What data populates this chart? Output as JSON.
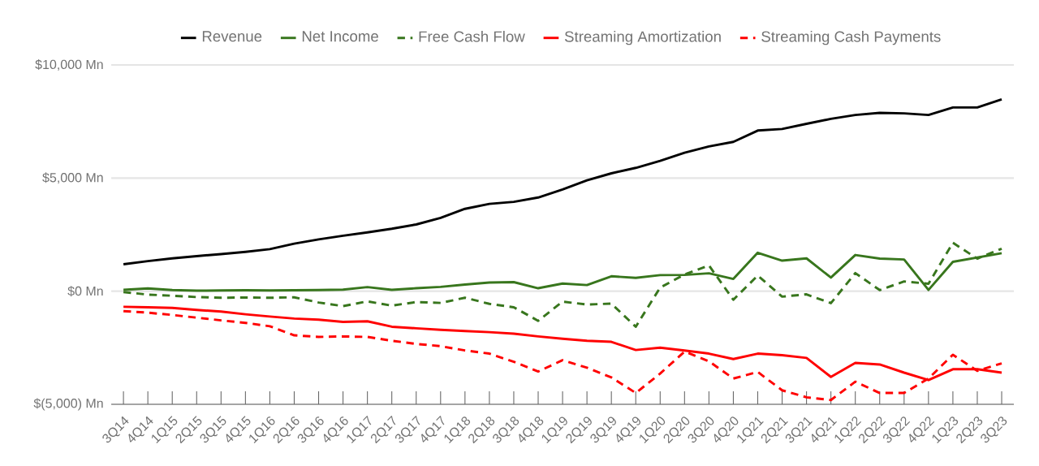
{
  "chart_data": {
    "type": "line",
    "categories": [
      "3Q14",
      "4Q14",
      "1Q15",
      "2Q15",
      "3Q15",
      "4Q15",
      "1Q16",
      "2Q16",
      "3Q16",
      "4Q16",
      "1Q17",
      "2Q17",
      "3Q17",
      "4Q17",
      "1Q18",
      "2Q18",
      "3Q18",
      "4Q18",
      "1Q19",
      "2Q19",
      "3Q19",
      "4Q19",
      "1Q20",
      "2Q20",
      "3Q20",
      "4Q20",
      "1Q21",
      "2Q21",
      "3Q21",
      "4Q21",
      "1Q22",
      "2Q22",
      "3Q22",
      "4Q22",
      "1Q23",
      "2Q23",
      "3Q23"
    ],
    "series": [
      {
        "name": "Revenue",
        "color": "#000000",
        "line_style": "solid",
        "values": [
          1190,
          1330,
          1450,
          1550,
          1640,
          1740,
          1860,
          2100,
          2290,
          2450,
          2600,
          2760,
          2950,
          3240,
          3640,
          3860,
          3950,
          4140,
          4500,
          4900,
          5210,
          5450,
          5760,
          6120,
          6400,
          6600,
          7100,
          7170,
          7400,
          7620,
          7790,
          7880,
          7860,
          7790,
          8120,
          8120,
          8480
        ]
      },
      {
        "name": "Net Income",
        "color": "#38761d",
        "line_style": "solid",
        "values": [
          60,
          120,
          50,
          25,
          30,
          40,
          30,
          40,
          50,
          70,
          180,
          60,
          130,
          190,
          290,
          380,
          400,
          130,
          340,
          270,
          660,
          590,
          710,
          720,
          790,
          540,
          1700,
          1350,
          1450,
          600,
          1600,
          1440,
          1400,
          55,
          1300,
          1490,
          1680
        ]
      },
      {
        "name": "Free Cash Flow",
        "color": "#38761d",
        "line_style": "dashed",
        "values": [
          -40,
          -150,
          -200,
          -260,
          -290,
          -280,
          -290,
          -270,
          -500,
          -660,
          -450,
          -640,
          -480,
          -520,
          -290,
          -560,
          -710,
          -1310,
          -460,
          -590,
          -550,
          -1570,
          160,
          740,
          1140,
          -380,
          690,
          -240,
          -140,
          -530,
          800,
          50,
          430,
          330,
          2140,
          1440,
          1880
        ]
      },
      {
        "name": "Streaming Amortization",
        "color": "#ff0000",
        "line_style": "solid",
        "values": [
          -690,
          -710,
          -740,
          -830,
          -900,
          -1020,
          -1120,
          -1210,
          -1260,
          -1360,
          -1330,
          -1570,
          -1640,
          -1710,
          -1760,
          -1810,
          -1880,
          -2000,
          -2100,
          -2190,
          -2240,
          -2600,
          -2500,
          -2620,
          -2760,
          -3000,
          -2760,
          -2830,
          -2950,
          -3790,
          -3170,
          -3240,
          -3600,
          -3930,
          -3450,
          -3450,
          -3600
        ]
      },
      {
        "name": "Streaming Cash Payments",
        "color": "#ff0000",
        "line_style": "dashed",
        "values": [
          -880,
          -950,
          -1050,
          -1170,
          -1290,
          -1400,
          -1550,
          -1950,
          -2020,
          -2000,
          -2020,
          -2190,
          -2330,
          -2430,
          -2620,
          -2760,
          -3120,
          -3550,
          -3050,
          -3380,
          -3810,
          -4500,
          -3640,
          -2670,
          -3100,
          -3860,
          -3570,
          -4380,
          -4690,
          -4810,
          -4000,
          -4500,
          -4500,
          -3860,
          -2810,
          -3520,
          -3190
        ]
      }
    ],
    "ylim": [
      -5000,
      10000
    ],
    "yticks": [
      {
        "value": -5000,
        "label": "$(5,000) Mn"
      },
      {
        "value": 0,
        "label": "$0 Mn"
      },
      {
        "value": 5000,
        "label": "$5,000 Mn"
      },
      {
        "value": 10000,
        "label": "$10,000 Mn"
      }
    ],
    "grid": "y",
    "legend": "top",
    "marker": "none"
  }
}
